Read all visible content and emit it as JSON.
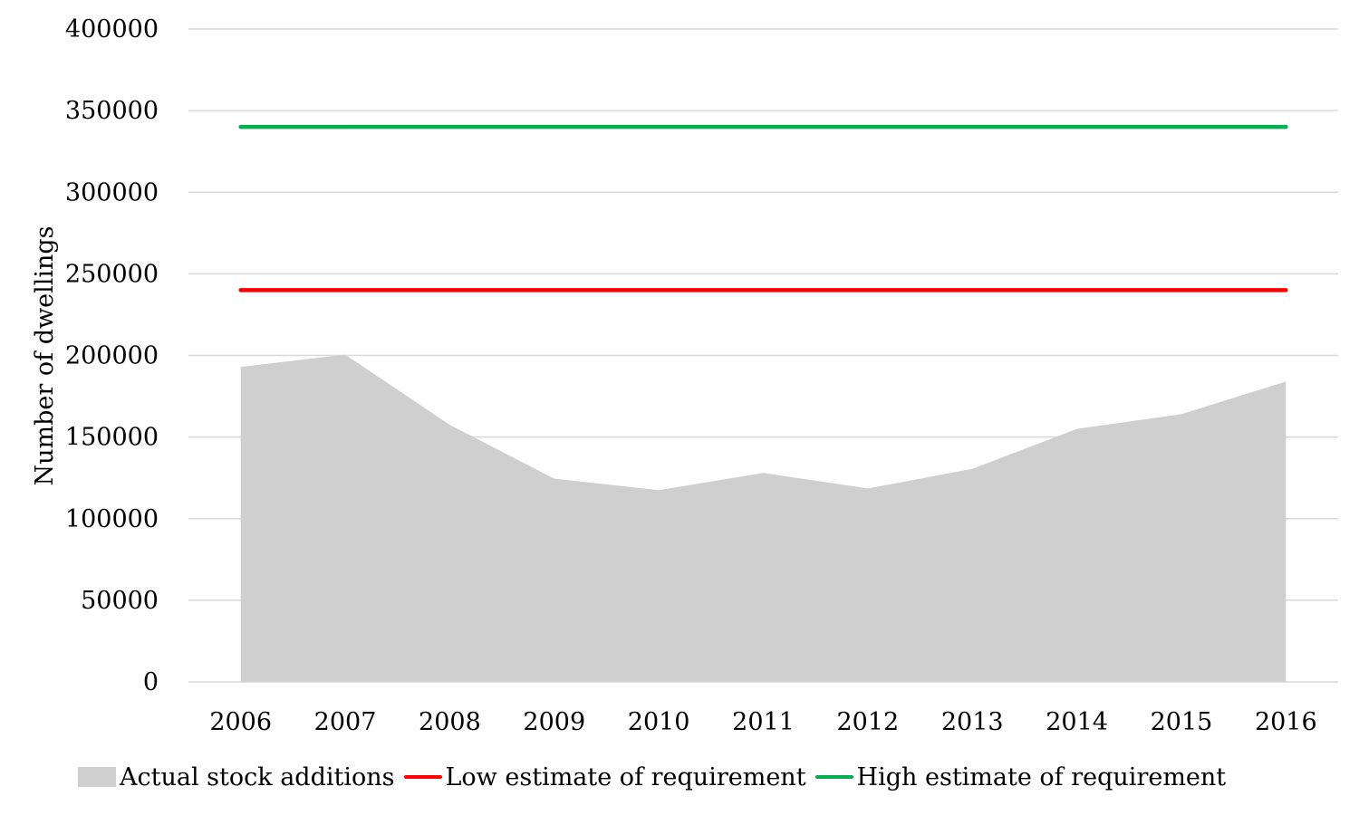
{
  "chart_data": {
    "type": "area",
    "categories": [
      "2006",
      "2007",
      "2008",
      "2009",
      "2010",
      "2011",
      "2012",
      "2013",
      "2014",
      "2015",
      "2016"
    ],
    "series": [
      {
        "name": "Actual stock additions",
        "type": "area",
        "color": "#d0cfd0",
        "values": [
          193000,
          200500,
          157500,
          124500,
          117500,
          128000,
          118500,
          130500,
          155000,
          164000,
          184000
        ]
      },
      {
        "name": "Low estimate of requirement",
        "type": "line",
        "color": "#ff0000",
        "values": [
          240000,
          240000,
          240000,
          240000,
          240000,
          240000,
          240000,
          240000,
          240000,
          240000,
          240000
        ]
      },
      {
        "name": "High estimate of requirement",
        "type": "line",
        "color": "#00b050",
        "values": [
          340000,
          340000,
          340000,
          340000,
          340000,
          340000,
          340000,
          340000,
          340000,
          340000,
          340000
        ]
      }
    ],
    "title": "",
    "xlabel": "",
    "ylabel": "Number of dwellings",
    "ylim": [
      0,
      400000
    ],
    "yticks": [
      "0",
      "50000",
      "100000",
      "150000",
      "200000",
      "250000",
      "300000",
      "350000",
      "400000"
    ],
    "grid": true,
    "gridline_color": "#d9d9d9",
    "legend_position": "bottom"
  }
}
